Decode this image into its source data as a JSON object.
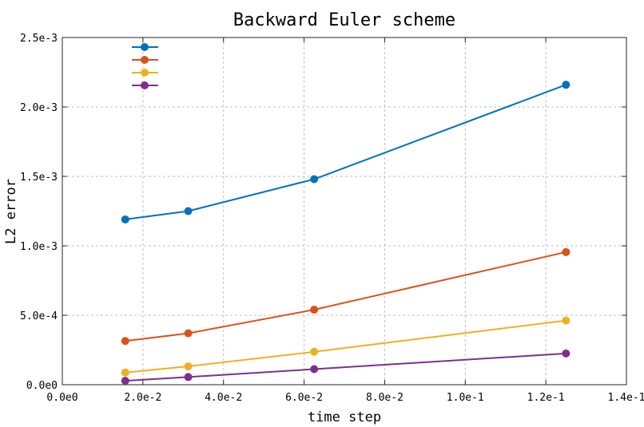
{
  "chart_data": {
    "type": "line",
    "title": "Backward Euler scheme",
    "xlabel": "time step",
    "ylabel": "L2 error",
    "xlim": [
      0,
      0.14
    ],
    "ylim": [
      0,
      0.0025
    ],
    "x_scale": "linear",
    "y_scale": "linear",
    "grid": true,
    "legend_position": "top-left",
    "x_ticks": [
      0,
      0.02,
      0.04,
      0.06,
      0.08,
      0.1,
      0.12,
      0.14
    ],
    "x_tick_labels": [
      "0.0e0",
      "2.0e-2",
      "4.0e-2",
      "6.0e-2",
      "8.0e-2",
      "1.0e-1",
      "1.2e-1",
      "1.4e-1"
    ],
    "y_ticks": [
      0,
      0.0005,
      0.001,
      0.0015,
      0.002,
      0.0025
    ],
    "y_tick_labels": [
      "0.0e0",
      "5.0e-4",
      "1.0e-3",
      "1.5e-3",
      "2.0e-3",
      "2.5e-3"
    ],
    "x": [
      0.015625,
      0.03125,
      0.0625,
      0.125
    ],
    "series": [
      {
        "name": "",
        "color": "#0072BD",
        "values": [
          0.00119,
          0.00125,
          0.00148,
          0.00216
        ]
      },
      {
        "name": "",
        "color": "#D95319",
        "values": [
          0.000315,
          0.00037,
          0.00054,
          0.000955
        ]
      },
      {
        "name": "",
        "color": "#EDB120",
        "values": [
          8.8e-05,
          0.000132,
          0.000237,
          0.000462
        ]
      },
      {
        "name": "",
        "color": "#7E2F8E",
        "values": [
          2.8e-05,
          5.5e-05,
          0.000112,
          0.000225
        ]
      }
    ]
  }
}
